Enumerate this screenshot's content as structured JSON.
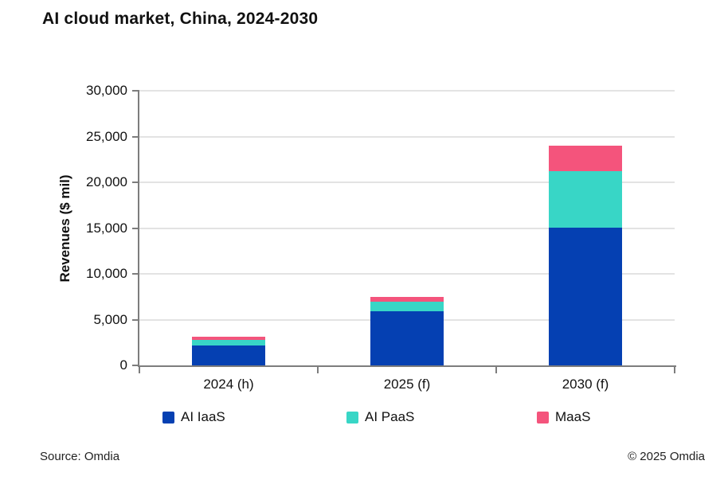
{
  "header": {
    "title": "AI cloud market, China, 2024-2030"
  },
  "footer": {
    "source": "Source: Omdia",
    "copyright": "© 2025 Omdia"
  },
  "chart_data": {
    "type": "bar",
    "stacked": true,
    "title": "AI cloud market, China, 2024-2030",
    "categories": [
      "2024 (h)",
      "2025 (f)",
      "2030 (f)"
    ],
    "series": [
      {
        "name": "AI IaaS",
        "color": "#0540b2",
        "values": [
          2150,
          5900,
          15000
        ]
      },
      {
        "name": "AI PaaS",
        "color": "#38d6c6",
        "values": [
          650,
          1050,
          6200
        ]
      },
      {
        "name": "MaaS",
        "color": "#f4547c",
        "values": [
          350,
          550,
          2800
        ]
      }
    ],
    "approx_totals": [
      3150,
      7500,
      24000
    ],
    "xlabel": "",
    "ylabel": "Revenues ($ mil)",
    "ylim": [
      0,
      30000
    ],
    "yticks": [
      0,
      5000,
      10000,
      15000,
      20000,
      25000,
      30000
    ],
    "grid": true,
    "legend_position": "bottom",
    "axis_color": "#7d7d7d",
    "gridline_color": "#e3e3e3",
    "background_color": "#ffffff"
  }
}
